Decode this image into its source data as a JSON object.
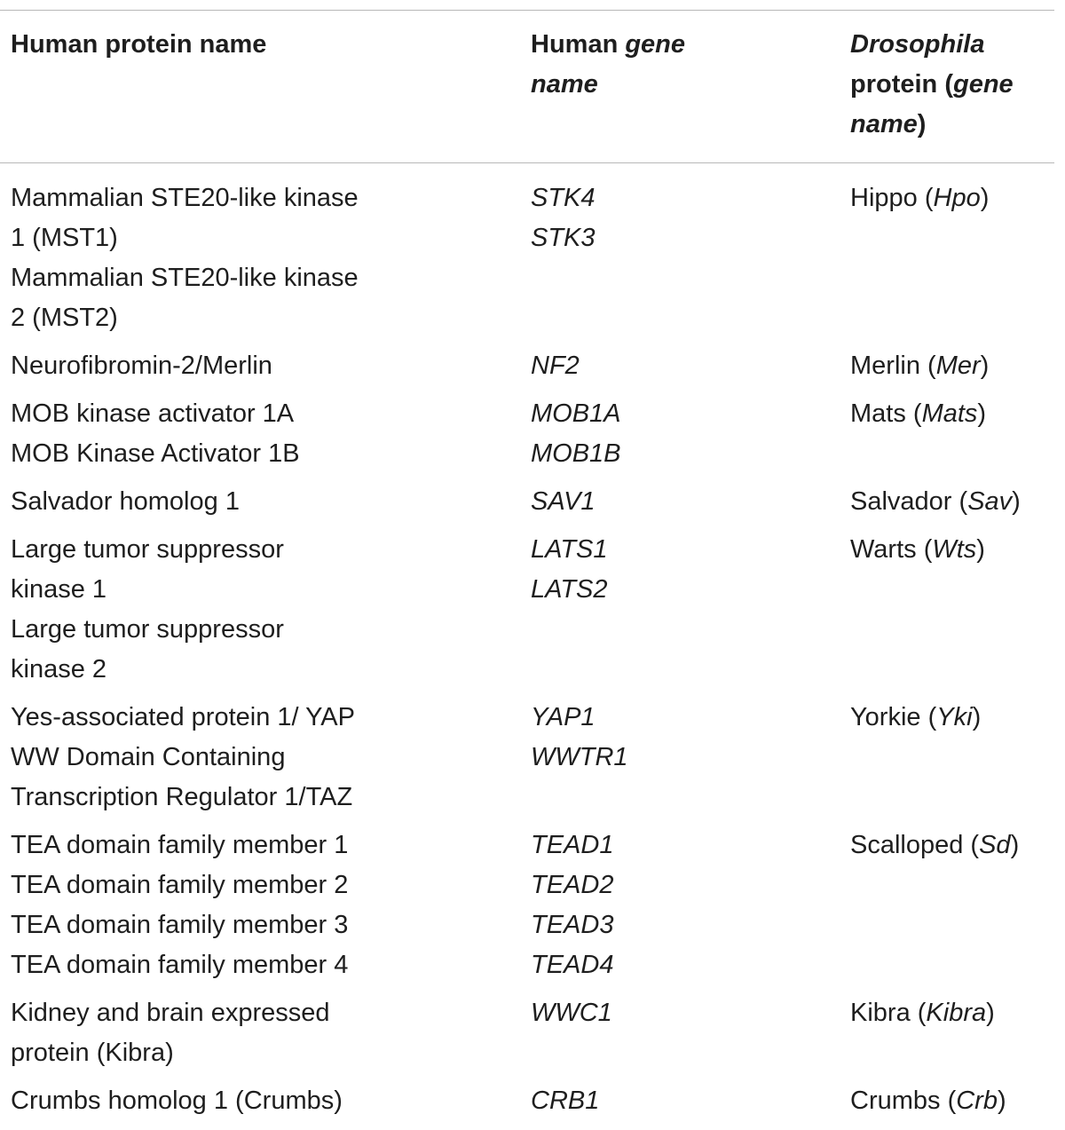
{
  "table": {
    "headers": {
      "col1": [
        "Human protein name"
      ],
      "col2": [
        {
          "plain": "Human ",
          "italic": "gene"
        },
        {
          "plain": "",
          "italic": "name"
        }
      ],
      "col3": [
        {
          "plain": "",
          "italic": "Drosophila"
        },
        {
          "plain": "protein (",
          "italic": "gene"
        },
        {
          "plain": ")",
          "italic": "name"
        }
      ]
    },
    "rows": [
      {
        "protein": [
          "Mammalian STE20-like kinase",
          "1 (MST1)",
          "Mammalian STE20-like kinase",
          "2 (MST2)"
        ],
        "genes": [
          "STK4",
          "STK3"
        ],
        "drosophila_name": "Hippo",
        "drosophila_gene": "Hpo"
      },
      {
        "protein": [
          "Neurofibromin-2/Merlin"
        ],
        "genes": [
          "NF2"
        ],
        "drosophila_name": "Merlin",
        "drosophila_gene": "Mer"
      },
      {
        "protein": [
          "MOB kinase activator 1A",
          "MOB Kinase Activator 1B"
        ],
        "genes": [
          "MOB1A",
          "MOB1B"
        ],
        "drosophila_name": "Mats",
        "drosophila_gene": "Mats"
      },
      {
        "protein": [
          "Salvador homolog 1"
        ],
        "genes": [
          "SAV1"
        ],
        "drosophila_name": "Salvador",
        "drosophila_gene": "Sav"
      },
      {
        "protein": [
          "Large tumor suppressor",
          "kinase 1",
          "Large tumor suppressor",
          "kinase 2"
        ],
        "genes": [
          "LATS1",
          "LATS2"
        ],
        "drosophila_name": "Warts",
        "drosophila_gene": "Wts"
      },
      {
        "protein": [
          "Yes-associated protein 1/ YAP",
          "WW Domain Containing",
          "Transcription Regulator 1/TAZ"
        ],
        "genes": [
          "YAP1",
          "WWTR1"
        ],
        "drosophila_name": "Yorkie",
        "drosophila_gene": "Yki"
      },
      {
        "protein": [
          "TEA domain family member 1",
          "TEA domain family member 2",
          "TEA domain family member 3",
          "TEA domain family member 4"
        ],
        "genes": [
          "TEAD1",
          "TEAD2",
          "TEAD3",
          "TEAD4"
        ],
        "drosophila_name": "Scalloped",
        "drosophila_gene": "Sd"
      },
      {
        "protein": [
          "Kidney and brain expressed",
          "protein (Kibra)"
        ],
        "genes": [
          "WWC1"
        ],
        "drosophila_name": "Kibra",
        "drosophila_gene": "Kibra"
      },
      {
        "protein": [
          "Crumbs homolog 1 (Crumbs)"
        ],
        "genes": [
          "CRB1"
        ],
        "drosophila_name": "Crumbs",
        "drosophila_gene": "Crb"
      }
    ]
  }
}
